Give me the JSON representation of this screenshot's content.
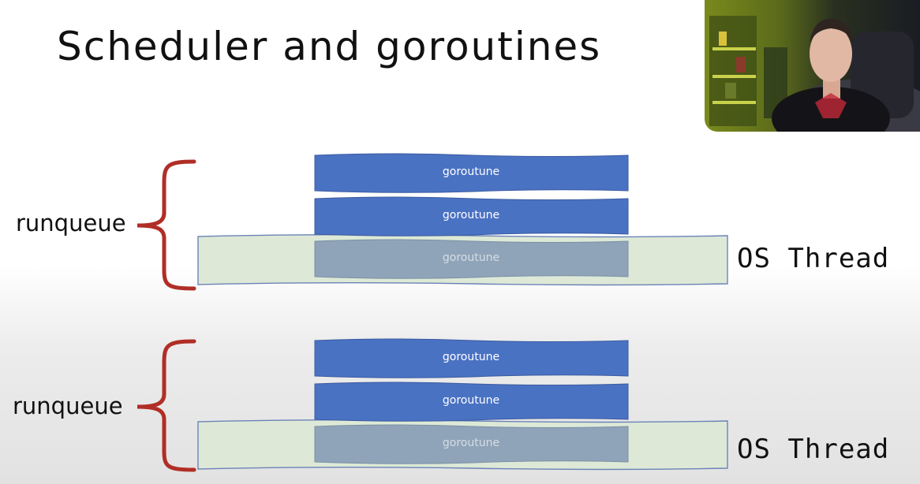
{
  "title": "Scheduler  and goroutines",
  "colors": {
    "goroutine_fill": "#4a72c3",
    "goroutine_dim_fill": "#8fa4b8",
    "thread_fill": "#dde9d6",
    "thread_stroke": "#6b83b8",
    "brace": "#b02e26"
  },
  "groups": [
    {
      "runqueue_label": "runqueue",
      "thread_label": "OS Thread",
      "goroutines": [
        "goroutune",
        "goroutune",
        "goroutune"
      ]
    },
    {
      "runqueue_label": "runqueue",
      "thread_label": "OS Thread",
      "goroutines": [
        "goroutune",
        "goroutune",
        "goroutune"
      ]
    }
  ]
}
